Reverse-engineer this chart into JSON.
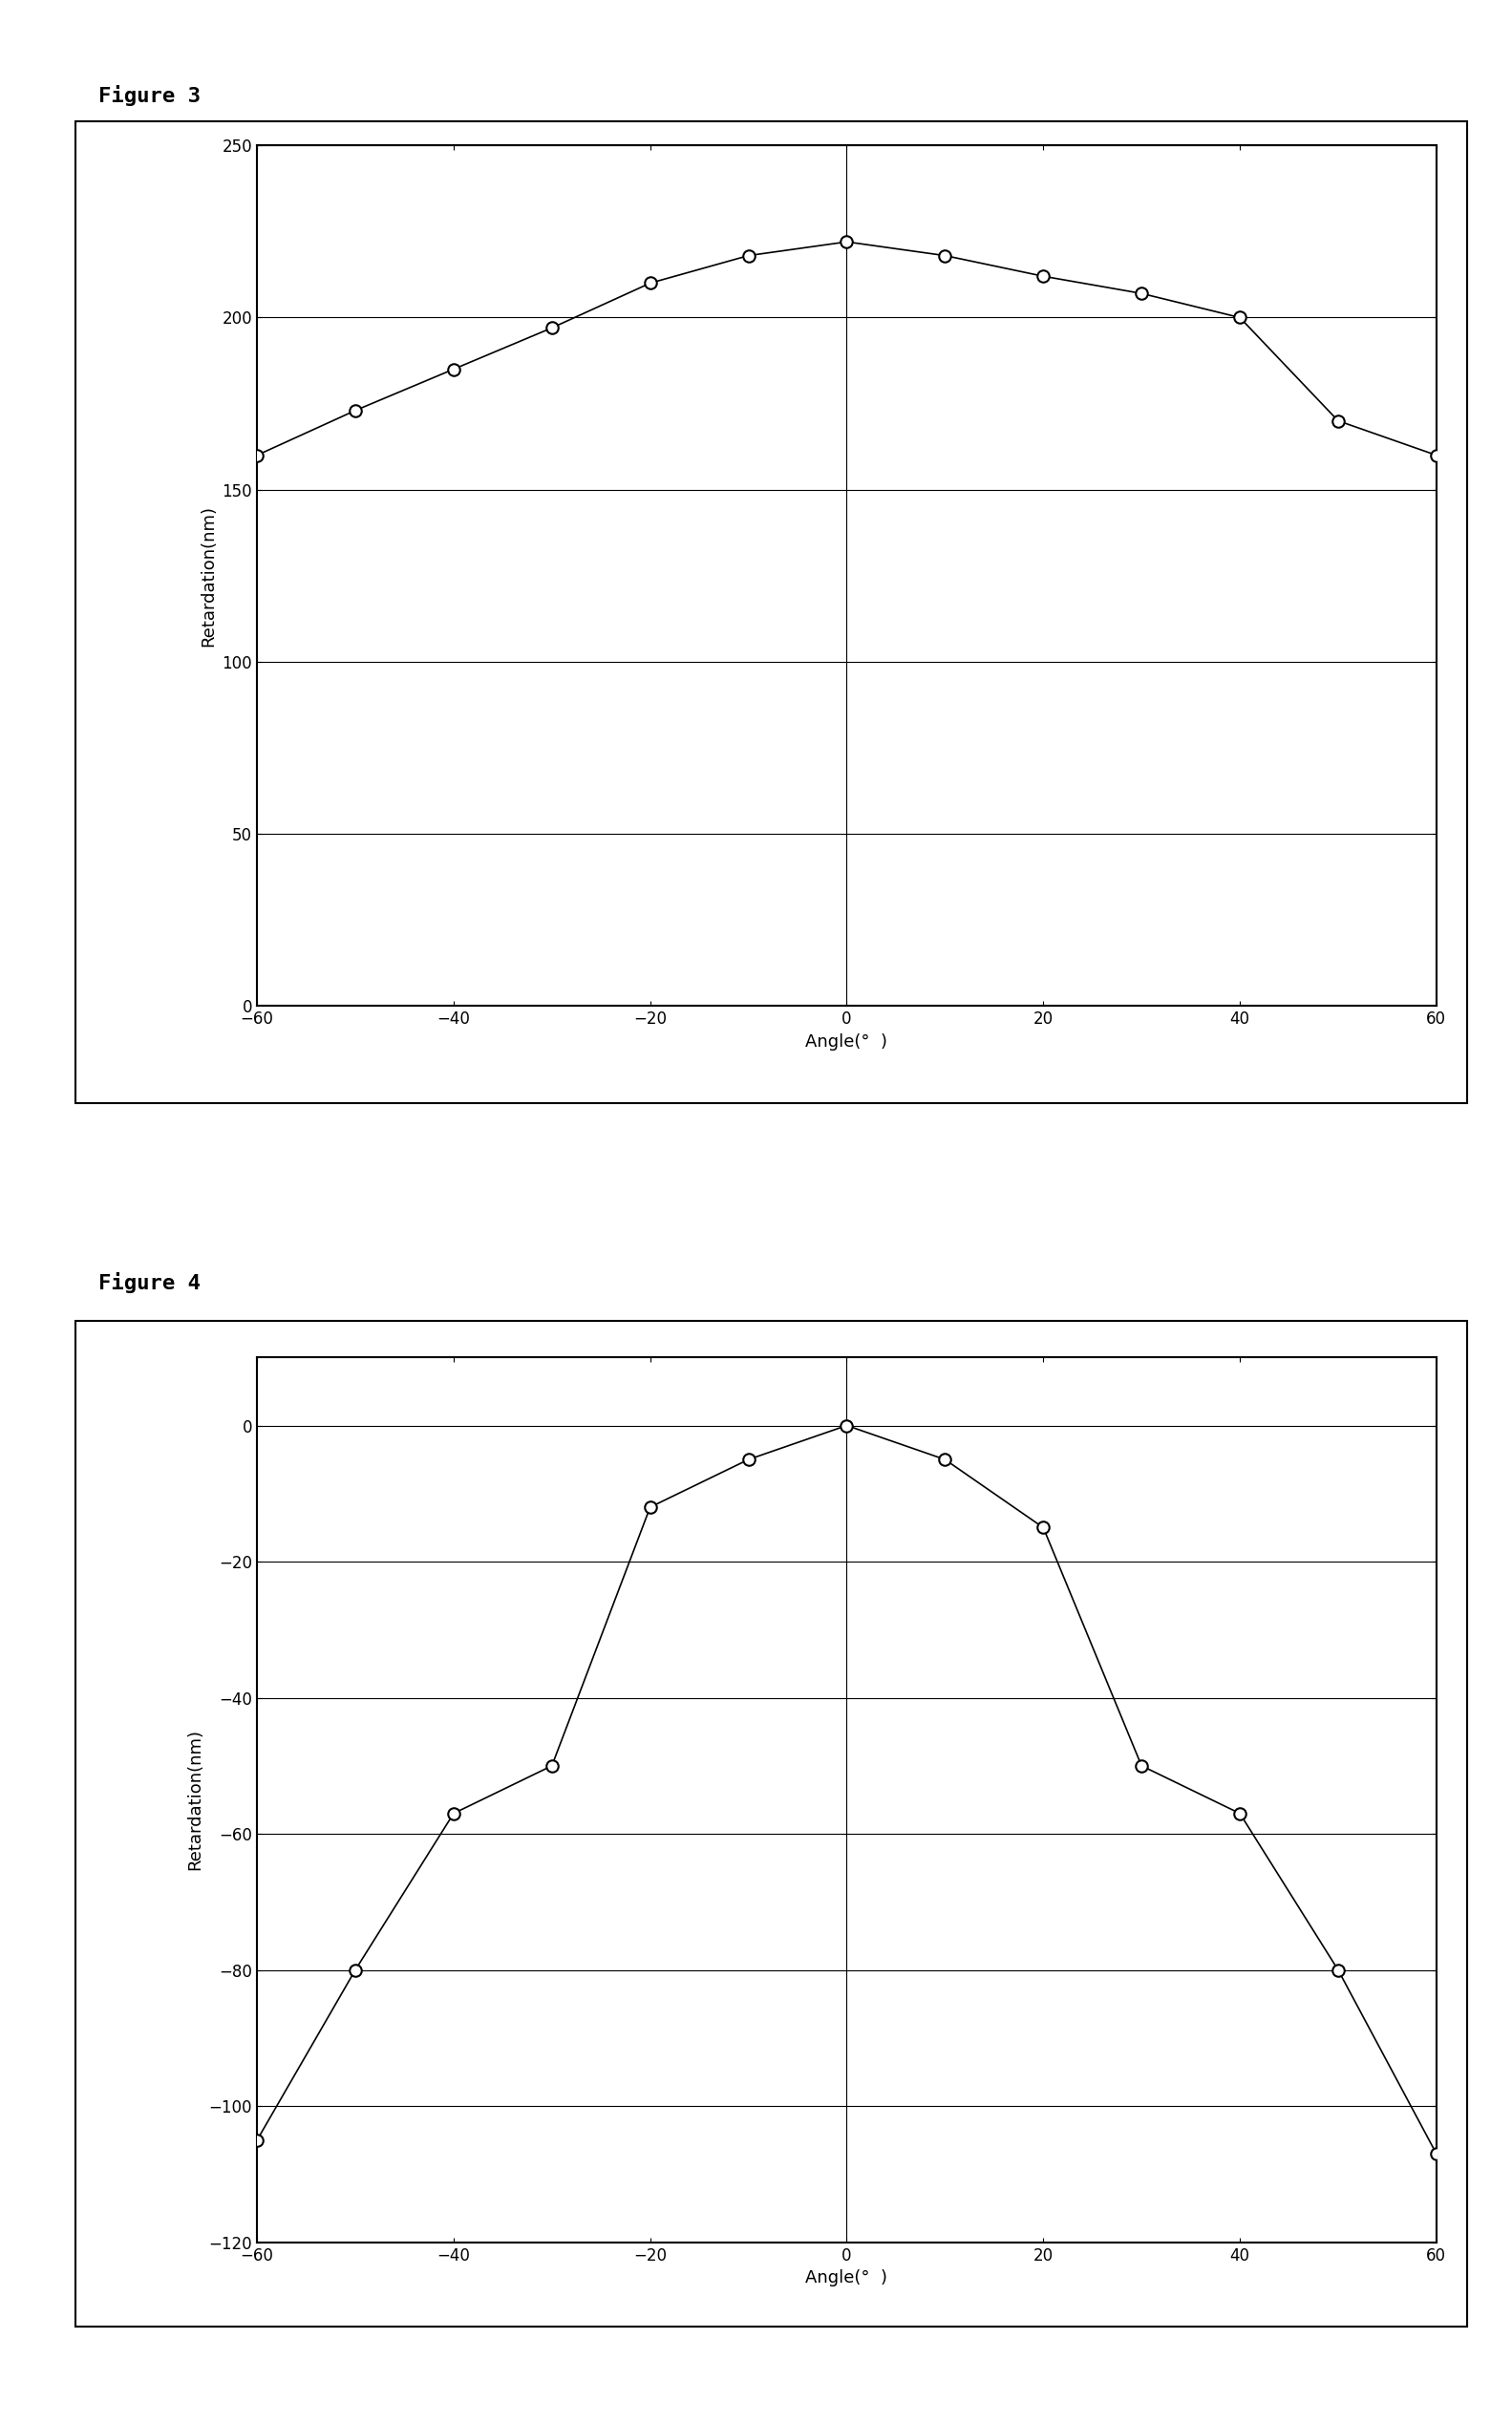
{
  "fig3": {
    "label": "Figure 3",
    "x": [
      -60,
      -50,
      -40,
      -30,
      -20,
      -10,
      0,
      10,
      20,
      30,
      40,
      50,
      60
    ],
    "y": [
      160,
      173,
      185,
      197,
      210,
      218,
      222,
      218,
      212,
      207,
      200,
      170,
      160
    ],
    "xlabel": "Angle(°  )",
    "ylabel": "Retardation(nm)",
    "xlim": [
      -60,
      60
    ],
    "ylim": [
      0,
      250
    ],
    "yticks": [
      0,
      50,
      100,
      150,
      200,
      250
    ],
    "xticks": [
      -60,
      -40,
      -20,
      0,
      20,
      40,
      60
    ],
    "hlines": [
      50,
      100,
      150,
      200,
      250
    ],
    "vline": 0
  },
  "fig4": {
    "label": "Figure 4",
    "x": [
      -60,
      -50,
      -40,
      -30,
      -20,
      -10,
      0,
      10,
      20,
      30,
      40,
      50,
      60
    ],
    "y": [
      -105,
      -80,
      -57,
      -50,
      -12,
      -5,
      0,
      -5,
      -15,
      -50,
      -57,
      -80,
      -107
    ],
    "xlabel": "Angle(°  )",
    "ylabel": "Retardation(nm)",
    "xlim": [
      -60,
      60
    ],
    "ylim": [
      -120,
      10
    ],
    "yticks": [
      -120,
      -100,
      -80,
      -60,
      -40,
      -20,
      0
    ],
    "xticks": [
      -60,
      -40,
      -20,
      0,
      20,
      40,
      60
    ],
    "hlines": [
      -100,
      -80,
      -60,
      -40,
      -20,
      0
    ],
    "vline": 0
  },
  "background_color": "#ffffff",
  "line_color": "#000000",
  "marker_facecolor": "#ffffff",
  "marker_edgecolor": "#000000",
  "label_fontsize": 16,
  "axis_label_fontsize": 13,
  "tick_fontsize": 12,
  "marker_size": 9,
  "line_width": 1.2,
  "marker_edge_width": 1.5
}
